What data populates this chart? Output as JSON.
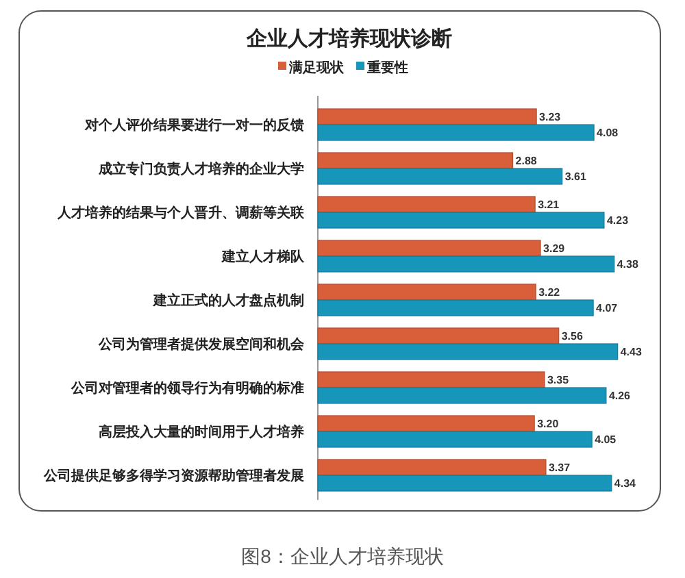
{
  "chart_data": {
    "type": "bar",
    "orientation": "horizontal",
    "title": "企业人才培养现状诊断",
    "categories": [
      "对个人评价结果要进行一对一的反馈",
      "成立专门负责人才培养的企业大学",
      "人才培养的结果与个人晋升、调薪等关联",
      "建立人才梯队",
      "建立正式的人才盘点机制",
      "公司为管理者提供发展空间和机会",
      "公司对管理者的领导行为有明确的标准",
      "高层投入大量的时间用于人才培养",
      "公司提供足够多得学习资源帮助管理者发展"
    ],
    "series": [
      {
        "name": "满足现状",
        "color": "#d95f3b",
        "values": [
          3.23,
          2.88,
          3.21,
          3.29,
          3.22,
          3.56,
          3.35,
          3.2,
          3.37
        ],
        "value_labels": [
          "3.23",
          "2.88",
          "3.21",
          "3.29",
          "3.22",
          "3.56",
          "3.35",
          "3.20",
          "3.37"
        ]
      },
      {
        "name": "重要性",
        "color": "#1896ba",
        "values": [
          4.08,
          3.61,
          4.23,
          4.38,
          4.07,
          4.43,
          4.26,
          4.05,
          4.34
        ],
        "value_labels": [
          "4.08",
          "3.61",
          "4.23",
          "4.38",
          "4.07",
          "4.43",
          "4.26",
          "4.05",
          "4.34"
        ]
      }
    ],
    "xlim": [
      0,
      5
    ],
    "tick_labels": "y",
    "legend": "top",
    "annotations": [
      "图8：企业人才培养现状"
    ]
  }
}
